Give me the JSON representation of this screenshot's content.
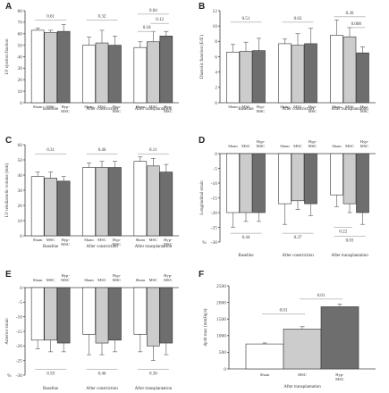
{
  "colors": {
    "Sham": "#ffffff",
    "MSC": "#cccccc",
    "Hyp-MSC": "#6e6e6e"
  },
  "chart_data": [
    {
      "panel": "A",
      "type": "bar",
      "ylabel": "LV ejection fraction",
      "unit_label": "%",
      "ylim": [
        0,
        80
      ],
      "yticks": [
        0,
        10,
        20,
        30,
        40,
        50,
        60,
        70,
        80
      ],
      "categories": [
        "Sham",
        "MSC",
        "Hyp-MSC"
      ],
      "groups": [
        {
          "name": "Baseline",
          "values": [
            63,
            61,
            62
          ],
          "errors": [
            2,
            2,
            6
          ],
          "pvalues": [
            {
              "text": "0.61",
              "from": 0,
              "to": 2,
              "level": 72
            }
          ]
        },
        {
          "name": "After constriction",
          "values": [
            50,
            52,
            50
          ],
          "errors": [
            7,
            11,
            8
          ],
          "pvalues": [
            {
              "text": "0.32",
              "from": 0,
              "to": 2,
              "level": 72
            }
          ]
        },
        {
          "name": "After transplantation",
          "values": [
            48,
            53,
            58
          ],
          "errors": [
            5,
            9,
            4
          ],
          "pvalues": [
            {
              "text": "0.04",
              "from": 0,
              "to": 2,
              "level": 77
            },
            {
              "text": "0.12",
              "from": 1,
              "to": 2,
              "level": 69
            },
            {
              "text": "0.18",
              "from": 0,
              "to": 1,
              "level": 62
            }
          ]
        }
      ]
    },
    {
      "panel": "B",
      "type": "bar",
      "ylabel": "Diastolic function (E/E')",
      "ylim": [
        0,
        12
      ],
      "yticks": [
        0,
        2,
        4,
        6,
        8,
        10,
        12
      ],
      "categories": [
        "Sham",
        "MSC",
        "Hyp-MSC"
      ],
      "groups": [
        {
          "name": "Baseline",
          "values": [
            6.6,
            6.7,
            6.8
          ],
          "errors": [
            1.0,
            1.2,
            1.6
          ],
          "pvalues": [
            {
              "text": "0.51",
              "from": 0,
              "to": 2,
              "level": 10.5
            }
          ]
        },
        {
          "name": "After constriction",
          "values": [
            7.7,
            7.5,
            7.7
          ],
          "errors": [
            0.6,
            1.5,
            2.0
          ],
          "pvalues": [
            {
              "text": "0.63",
              "from": 0,
              "to": 2,
              "level": 10.5
            }
          ]
        },
        {
          "name": "After transplantation",
          "values": [
            8.8,
            8.6,
            6.5
          ],
          "errors": [
            2.0,
            1.2,
            0.8
          ],
          "pvalues": [
            {
              "text": "0.36",
              "from": 0,
              "to": 2,
              "level": 11.2
            },
            {
              "text": "0.008",
              "from": 1,
              "to": 2,
              "level": 9.8
            }
          ]
        }
      ]
    },
    {
      "panel": "C",
      "type": "bar",
      "ylabel": "LV telediastolic volume (mm)",
      "ylim": [
        0,
        60
      ],
      "yticks": [
        0,
        10,
        20,
        30,
        40,
        50,
        60
      ],
      "categories": [
        "Sham",
        "MSC",
        "Hyp-MSC"
      ],
      "groups": [
        {
          "name": "Baseline",
          "values": [
            39,
            38,
            36
          ],
          "errors": [
            3,
            4,
            3
          ],
          "pvalues": [
            {
              "text": "0.31",
              "from": 0,
              "to": 2,
              "level": 54
            }
          ]
        },
        {
          "name": "After constriction",
          "values": [
            45,
            45,
            45
          ],
          "errors": [
            3,
            4,
            4
          ],
          "pvalues": [
            {
              "text": "0.46",
              "from": 0,
              "to": 2,
              "level": 54
            }
          ]
        },
        {
          "name": "After transplantation",
          "values": [
            49,
            46,
            42
          ],
          "errors": [
            3,
            5,
            5
          ],
          "pvalues": [
            {
              "text": "0.11",
              "from": 0,
              "to": 2,
              "level": 54
            }
          ]
        }
      ]
    },
    {
      "panel": "D",
      "type": "bar",
      "ylabel": "Longitudinal strain",
      "unit_label": "%",
      "ylim": [
        -30,
        0
      ],
      "yticks": [
        0,
        -5,
        -10,
        -15,
        -20,
        -25,
        -30
      ],
      "categories": [
        "Sham",
        "MSC",
        "Hyp-MSC"
      ],
      "groups": [
        {
          "name": "Baseline",
          "values": [
            -20,
            -20,
            -20
          ],
          "errors": [
            5,
            3,
            3
          ],
          "pvalues": [
            {
              "text": "0.44",
              "from": 0,
              "to": 2,
              "level": -27
            }
          ]
        },
        {
          "name": "After constriction",
          "values": [
            -17,
            -16,
            -17
          ],
          "errors": [
            7,
            3,
            4
          ],
          "pvalues": [
            {
              "text": "0.37",
              "from": 0,
              "to": 2,
              "level": -27
            }
          ]
        },
        {
          "name": "After transplantation",
          "values": [
            -14,
            -17,
            -20
          ],
          "errors": [
            4,
            3,
            4
          ],
          "pvalues": [
            {
              "text": "0.22",
              "from": 0,
              "to": 1,
              "level": -25
            },
            {
              "text": "0.03",
              "from": 0,
              "to": 2,
              "level": -28
            }
          ]
        }
      ]
    },
    {
      "panel": "E",
      "type": "bar",
      "ylabel": "Anterior strain",
      "unit_label": "%",
      "ylim": [
        -30,
        0
      ],
      "yticks": [
        0,
        -5,
        -10,
        -15,
        -20,
        -25,
        -30
      ],
      "categories": [
        "Sham",
        "MSC",
        "Hyp-MSC"
      ],
      "groups": [
        {
          "name": "Baseline",
          "values": [
            -18,
            -18,
            -19
          ],
          "errors": [
            3,
            4,
            3
          ],
          "pvalues": [
            {
              "text": "0.59",
              "from": 0,
              "to": 2,
              "level": -28
            }
          ]
        },
        {
          "name": "After constriction",
          "values": [
            -16,
            -19,
            -18
          ],
          "errors": [
            7,
            4,
            4
          ],
          "pvalues": [
            {
              "text": "0.46",
              "from": 0,
              "to": 2,
              "level": -28
            }
          ]
        },
        {
          "name": "After transplantation",
          "values": [
            -16,
            -20,
            -19
          ],
          "errors": [
            6,
            5,
            4
          ],
          "pvalues": [
            {
              "text": "0.30",
              "from": 0,
              "to": 2,
              "level": -28
            }
          ]
        }
      ]
    },
    {
      "panel": "F",
      "type": "bar",
      "ylabel": "dp/dt max (mmHg/s)",
      "ylim": [
        0,
        2500
      ],
      "yticks": [
        0,
        500,
        1000,
        1500,
        2000,
        2500
      ],
      "categories": [
        "Sham",
        "MSC",
        "Hyp-MSC"
      ],
      "groups": [
        {
          "name": "After transplantation",
          "values": [
            750,
            1200,
            1870
          ],
          "errors": [
            30,
            70,
            80
          ],
          "pvalues": [
            {
              "text": "0.01",
              "from": 0,
              "to": 1,
              "level": 1650
            },
            {
              "text": "0.01",
              "from": 1,
              "to": 2,
              "level": 2100
            }
          ]
        }
      ]
    }
  ]
}
